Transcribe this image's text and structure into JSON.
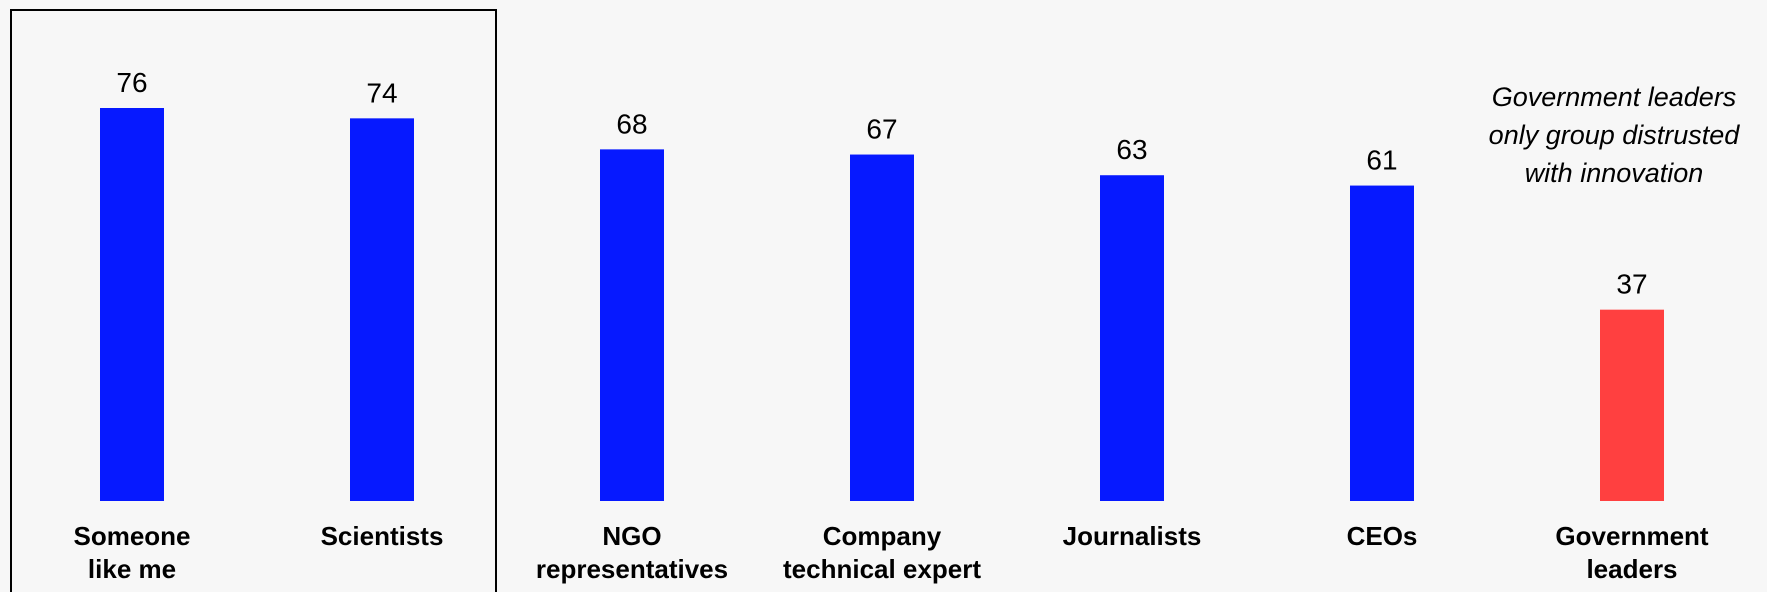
{
  "chart_data": {
    "type": "bar",
    "title": "",
    "xlabel": "",
    "ylabel": "",
    "ylim": [
      0,
      76
    ],
    "grid": false,
    "legend": "none",
    "categories": [
      [
        "Someone",
        "like me"
      ],
      [
        "Scientists"
      ],
      [
        "NGO",
        "representatives"
      ],
      [
        "Company",
        "technical expert"
      ],
      [
        "Journalists"
      ],
      [
        "CEOs"
      ],
      [
        "Government",
        "leaders"
      ]
    ],
    "values": [
      76,
      74,
      68,
      67,
      63,
      61,
      37
    ],
    "colors": [
      "#0619ff",
      "#0619ff",
      "#0619ff",
      "#0619ff",
      "#0619ff",
      "#0619ff",
      "#ff4040"
    ],
    "highlight_box": [
      "Someone like me",
      "Scientists"
    ],
    "annotation": [
      "Government leaders",
      "only group distrusted",
      "with innovation"
    ]
  }
}
